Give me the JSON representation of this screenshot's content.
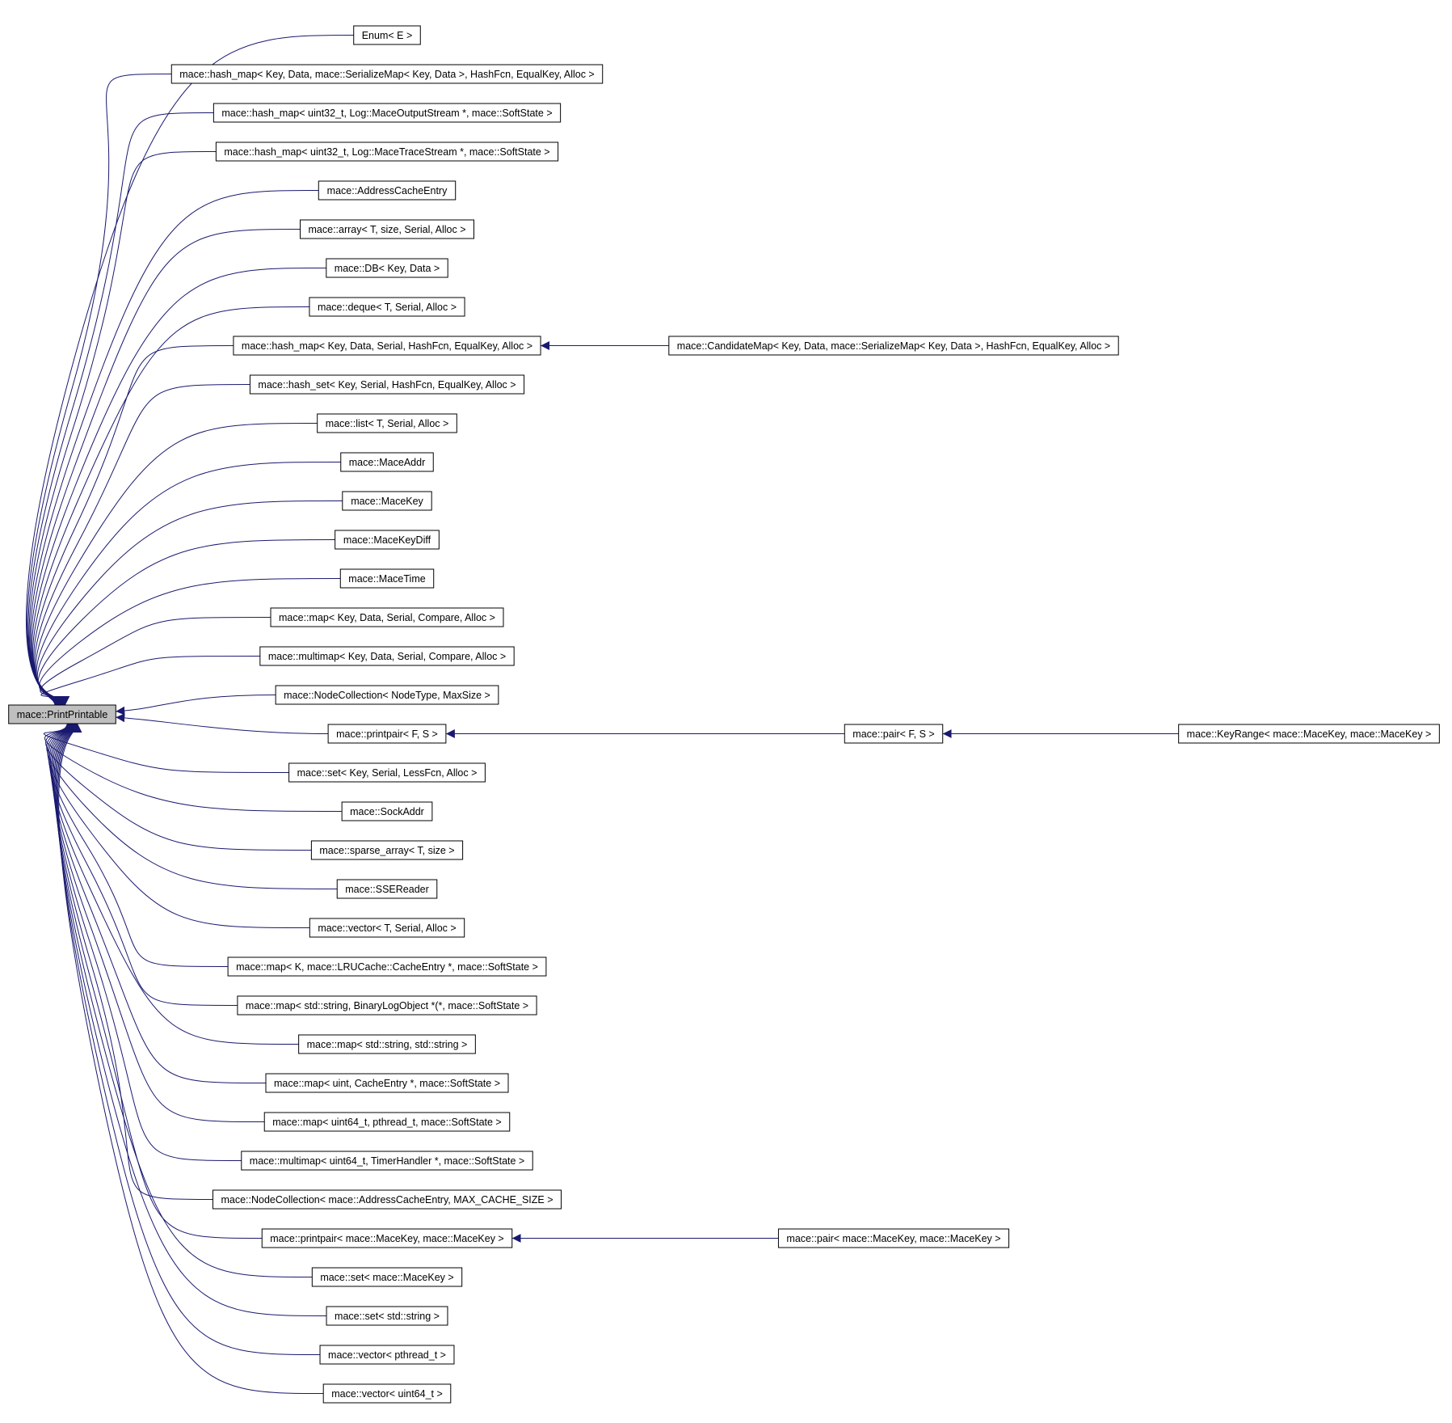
{
  "root": {
    "label": "mace::PrintPrintable"
  },
  "children": [
    {
      "label": "Enum< E >"
    },
    {
      "label": "mace::hash_map< Key, Data, mace::SerializeMap< Key, Data >, HashFcn, EqualKey, Alloc >"
    },
    {
      "label": "mace::hash_map< uint32_t, Log::MaceOutputStream *, mace::SoftState >"
    },
    {
      "label": "mace::hash_map< uint32_t, Log::MaceTraceStream *, mace::SoftState >"
    },
    {
      "label": "mace::AddressCacheEntry"
    },
    {
      "label": "mace::array< T, size, Serial, Alloc >"
    },
    {
      "label": "mace::DB< Key, Data >"
    },
    {
      "label": "mace::deque< T, Serial, Alloc >"
    },
    {
      "label": "mace::hash_map< Key, Data, Serial, HashFcn, EqualKey, Alloc >",
      "children": [
        {
          "label": "mace::CandidateMap< Key, Data, mace::SerializeMap< Key, Data >, HashFcn, EqualKey, Alloc >"
        }
      ]
    },
    {
      "label": "mace::hash_set< Key, Serial, HashFcn, EqualKey, Alloc >"
    },
    {
      "label": "mace::list< T, Serial, Alloc >"
    },
    {
      "label": "mace::MaceAddr"
    },
    {
      "label": "mace::MaceKey"
    },
    {
      "label": "mace::MaceKeyDiff"
    },
    {
      "label": "mace::MaceTime"
    },
    {
      "label": "mace::map< Key, Data, Serial, Compare, Alloc >"
    },
    {
      "label": "mace::multimap< Key, Data, Serial, Compare, Alloc >"
    },
    {
      "label": "mace::NodeCollection< NodeType, MaxSize >"
    },
    {
      "label": "mace::printpair< F, S >",
      "children": [
        {
          "label": "mace::pair< F, S >",
          "children": [
            {
              "label": "mace::KeyRange< mace::MaceKey, mace::MaceKey >"
            }
          ]
        }
      ]
    },
    {
      "label": "mace::set< Key, Serial, LessFcn, Alloc >"
    },
    {
      "label": "mace::SockAddr"
    },
    {
      "label": "mace::sparse_array< T, size >"
    },
    {
      "label": "mace::SSEReader"
    },
    {
      "label": "mace::vector< T, Serial, Alloc >"
    },
    {
      "label": "mace::map< K, mace::LRUCache::CacheEntry *, mace::SoftState >"
    },
    {
      "label": "mace::map< std::string, BinaryLogObject *(*, mace::SoftState >"
    },
    {
      "label": "mace::map< std::string, std::string >"
    },
    {
      "label": "mace::map< uint, CacheEntry *, mace::SoftState >"
    },
    {
      "label": "mace::map< uint64_t, pthread_t, mace::SoftState >"
    },
    {
      "label": "mace::multimap< uint64_t, TimerHandler *, mace::SoftState >"
    },
    {
      "label": "mace::NodeCollection< mace::AddressCacheEntry, MAX_CACHE_SIZE >"
    },
    {
      "label": "mace::printpair< mace::MaceKey, mace::MaceKey >",
      "children": [
        {
          "label": "mace::pair< mace::MaceKey, mace::MaceKey >"
        }
      ]
    },
    {
      "label": "mace::set< mace::MaceKey >"
    },
    {
      "label": "mace::set< std::string >"
    },
    {
      "label": "mace::vector< pthread_t >"
    },
    {
      "label": "mace::vector< uint64_t >"
    }
  ]
}
